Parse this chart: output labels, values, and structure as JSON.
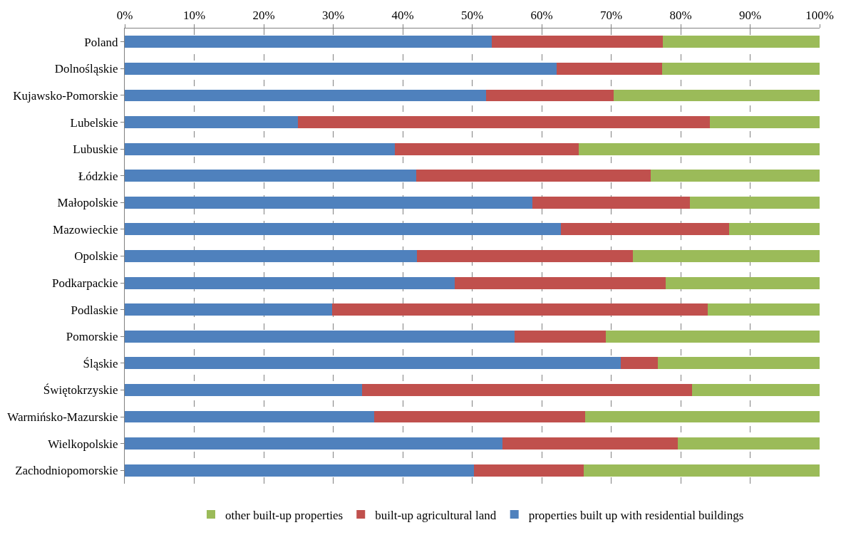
{
  "chart_data": {
    "type": "bar",
    "orientation": "horizontal",
    "stacked": true,
    "categories": [
      "Poland",
      "Dolnośląskie",
      "Kujawsko-Pomorskie",
      "Lubelskie",
      "Lubuskie",
      "Łódzkie",
      "Małopolskie",
      "Mazowieckie",
      "Opolskie",
      "Podkarpackie",
      "Podlaskie",
      "Pomorskie",
      "Śląskie",
      "Świętokrzyskie",
      "Warmińsko-Mazurskie",
      "Wielkopolskie",
      "Zachodniopomorskie"
    ],
    "series": [
      {
        "name": "properties built up with residential buildings",
        "color": "#4f81bd",
        "values": [
          52.8,
          62.2,
          52.0,
          24.9,
          38.9,
          41.9,
          58.7,
          62.8,
          42.1,
          47.5,
          29.8,
          56.1,
          71.4,
          34.2,
          35.9,
          54.4,
          50.3
        ]
      },
      {
        "name": "built-up agricultural land",
        "color": "#c0504d",
        "values": [
          24.6,
          15.1,
          18.4,
          59.3,
          26.4,
          33.8,
          22.6,
          24.2,
          31.0,
          30.3,
          54.1,
          13.1,
          5.3,
          47.4,
          30.4,
          25.2,
          15.8
        ]
      },
      {
        "name": "other built-up properties",
        "color": "#9bbb59",
        "values": [
          22.6,
          22.7,
          29.6,
          15.8,
          34.7,
          24.3,
          18.7,
          13.0,
          26.9,
          22.2,
          16.1,
          30.8,
          23.3,
          18.4,
          33.7,
          20.4,
          33.9
        ]
      }
    ],
    "xlim": [
      0,
      100
    ],
    "xticks": [
      {
        "value": 0,
        "label": "0%"
      },
      {
        "value": 10,
        "label": "10%"
      },
      {
        "value": 20,
        "label": "20%"
      },
      {
        "value": 30,
        "label": "30%"
      },
      {
        "value": 40,
        "label": "40%"
      },
      {
        "value": 50,
        "label": "50%"
      },
      {
        "value": 60,
        "label": "60%"
      },
      {
        "value": 70,
        "label": "70%"
      },
      {
        "value": 80,
        "label": "80%"
      },
      {
        "value": 90,
        "label": "90%"
      },
      {
        "value": 100,
        "label": "100%"
      }
    ],
    "grid": "x",
    "legend": "bottom"
  }
}
